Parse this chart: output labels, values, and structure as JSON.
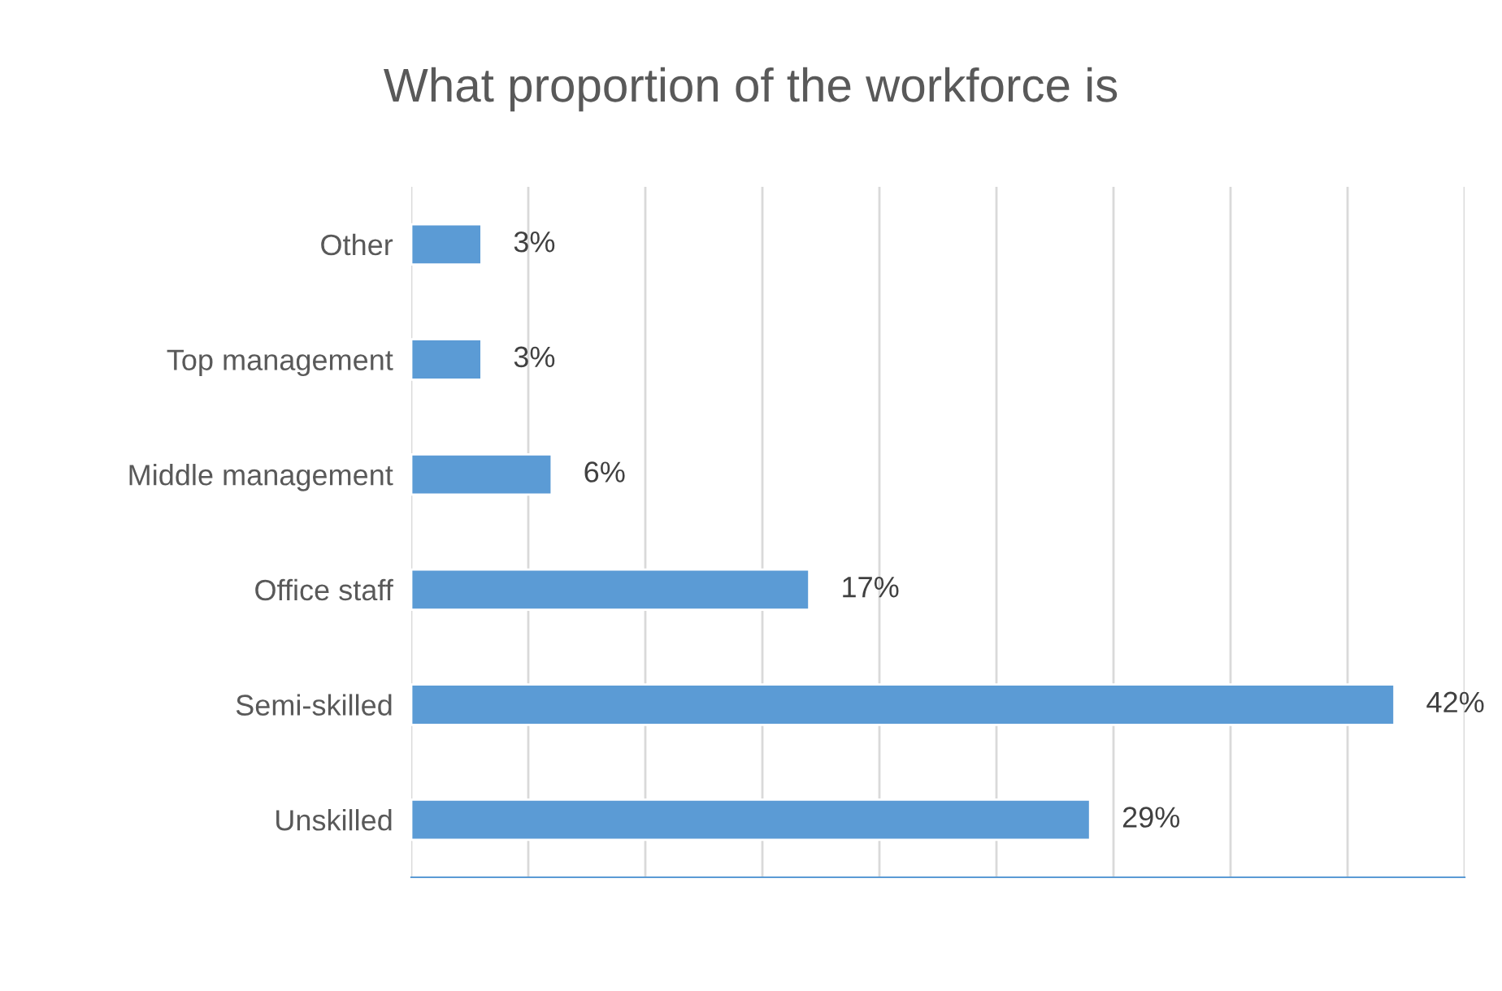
{
  "chart_data": {
    "type": "bar",
    "orientation": "horizontal",
    "title": "What proportion of the workforce is",
    "categories": [
      "Other",
      "Top management",
      "Middle management",
      "Office staff",
      "Semi-skilled",
      "Unskilled"
    ],
    "values": [
      3,
      3,
      6,
      17,
      42,
      29
    ],
    "value_labels": [
      "3%",
      "3%",
      "6%",
      "17%",
      "42%",
      "29%"
    ],
    "color": "#5b9bd5",
    "xlim": [
      0,
      45
    ],
    "xticks": [
      {
        "value": 0,
        "label": null
      },
      {
        "value": 5,
        "label": null
      },
      {
        "value": 10,
        "label": null
      },
      {
        "value": 15,
        "label": null
      },
      {
        "value": 20,
        "label": null
      },
      {
        "value": 25,
        "label": null
      },
      {
        "value": 30,
        "label": null
      },
      {
        "value": 35,
        "label": null
      },
      {
        "value": 40,
        "label": null
      },
      {
        "value": 45,
        "label": null
      }
    ],
    "tick_labels": "y",
    "grid": "x",
    "legend": false
  }
}
